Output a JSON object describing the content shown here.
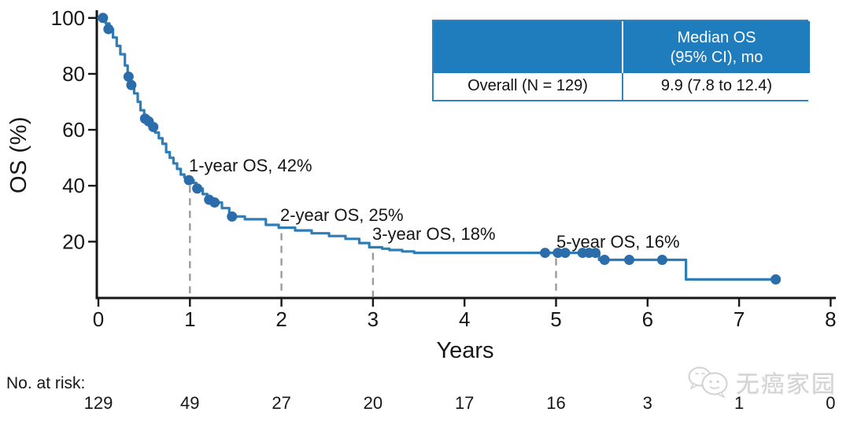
{
  "colors": {
    "curve": "#2e7db6",
    "censor_dot": "#2b6cab",
    "table_header": "#1f7dbe",
    "table_border": "#2f85c2",
    "dashed_line": "#9b9b9b",
    "axis": "#161616",
    "watermark": "#d2d2d2"
  },
  "summary_table": {
    "header_col1": "",
    "header_col2_line1": "Median OS",
    "header_col2_line2": "(95% CI), mo",
    "row_label": "Overall (N = 129)",
    "row_value": "9.9 (7.8 to 12.4)"
  },
  "watermark": {
    "icon": "wechat-chat-bubbles-icon",
    "text": "无癌家园"
  },
  "chart_data": {
    "type": "line",
    "subtype": "kaplan-meier-step",
    "title": "",
    "xlabel": "Years",
    "ylabel": "OS (%)",
    "xlim": [
      0,
      8
    ],
    "ylim": [
      0,
      100
    ],
    "x_ticks": [
      0,
      1,
      2,
      3,
      4,
      5,
      6,
      7,
      8
    ],
    "y_ticks": [
      20,
      40,
      60,
      80,
      100
    ],
    "grid": false,
    "start_value": 100,
    "end_year": 7.4,
    "km_steps": [
      [
        0.08,
        98
      ],
      [
        0.12,
        96
      ],
      [
        0.16,
        93
      ],
      [
        0.2,
        90
      ],
      [
        0.24,
        87
      ],
      [
        0.29,
        83
      ],
      [
        0.32,
        79
      ],
      [
        0.35,
        76
      ],
      [
        0.39,
        73
      ],
      [
        0.43,
        70
      ],
      [
        0.46,
        67
      ],
      [
        0.5,
        64
      ],
      [
        0.54,
        63
      ],
      [
        0.58,
        61
      ],
      [
        0.62,
        59
      ],
      [
        0.66,
        57
      ],
      [
        0.7,
        55
      ],
      [
        0.74,
        52
      ],
      [
        0.78,
        50
      ],
      [
        0.82,
        48
      ],
      [
        0.86,
        46
      ],
      [
        0.9,
        44
      ],
      [
        0.94,
        43
      ],
      [
        0.97,
        42
      ],
      [
        1.04,
        41
      ],
      [
        1.07,
        39
      ],
      [
        1.14,
        37
      ],
      [
        1.19,
        35
      ],
      [
        1.25,
        34
      ],
      [
        1.35,
        32
      ],
      [
        1.43,
        29
      ],
      [
        1.6,
        28
      ],
      [
        1.83,
        26
      ],
      [
        1.97,
        25
      ],
      [
        2.15,
        24
      ],
      [
        2.33,
        23
      ],
      [
        2.52,
        22
      ],
      [
        2.7,
        21
      ],
      [
        2.85,
        19.5
      ],
      [
        2.96,
        18
      ],
      [
        3.1,
        17.5
      ],
      [
        3.18,
        17
      ],
      [
        3.32,
        16.5
      ],
      [
        3.45,
        16
      ],
      [
        5.47,
        13.5
      ],
      [
        6.42,
        6.5
      ]
    ],
    "censor_marks": [
      [
        0.05,
        100
      ],
      [
        0.11,
        96
      ],
      [
        0.33,
        79
      ],
      [
        0.36,
        76
      ],
      [
        0.51,
        64
      ],
      [
        0.55,
        63
      ],
      [
        0.6,
        61
      ],
      [
        0.99,
        42
      ],
      [
        1.08,
        39
      ],
      [
        1.21,
        35
      ],
      [
        1.27,
        34
      ],
      [
        1.46,
        29
      ],
      [
        4.88,
        16
      ],
      [
        5.02,
        16
      ],
      [
        5.1,
        16
      ],
      [
        5.29,
        16
      ],
      [
        5.36,
        16
      ],
      [
        5.43,
        16
      ],
      [
        5.53,
        13.5
      ],
      [
        5.8,
        13.5
      ],
      [
        6.16,
        13.5
      ],
      [
        7.4,
        6.5
      ]
    ],
    "annotations": [
      {
        "label": "1-year OS, 42%",
        "year": 1,
        "os_pct": 42
      },
      {
        "label": "2-year OS, 25%",
        "year": 2,
        "os_pct": 25
      },
      {
        "label": "3-year OS, 18%",
        "year": 3,
        "os_pct": 18
      },
      {
        "label": "5-year OS, 16%",
        "year": 5,
        "os_pct": 16
      }
    ],
    "n_at_risk": {
      "label": "No. at risk:",
      "years": [
        0,
        1,
        2,
        3,
        4,
        5,
        6,
        7,
        8
      ],
      "counts": [
        "129",
        "49",
        "27",
        "20",
        "17",
        "16",
        "3",
        "1",
        "0"
      ]
    }
  }
}
